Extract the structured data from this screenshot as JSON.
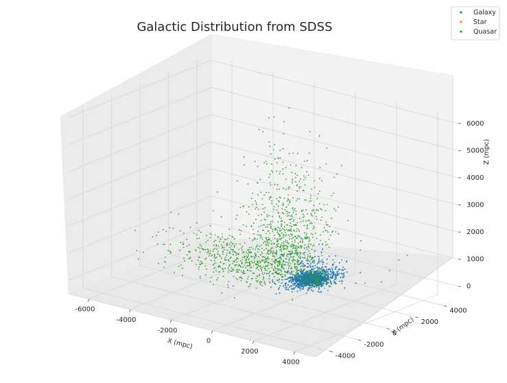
{
  "chart_data": {
    "type": "scatter",
    "projection": "3d",
    "title": "Galactic Distribution from SDSS",
    "xlabel": "X (mpc)",
    "ylabel": "Y (mpc)",
    "zlabel": "Z (mpc)",
    "xlim": [
      -7000,
      5000
    ],
    "ylim": [
      -5000,
      5000
    ],
    "zlim": [
      -500,
      6200
    ],
    "x_ticks": [
      "-6000",
      "-4000",
      "-2000",
      "0",
      "2000",
      "4000"
    ],
    "y_ticks": [
      "-4000",
      "-2000",
      "0",
      "2000",
      "4000"
    ],
    "z_ticks": [
      "0",
      "1000",
      "2000",
      "3000",
      "4000",
      "5000",
      "6000"
    ],
    "grid": true,
    "legend_position": "top-right",
    "series": [
      {
        "name": "Galaxy",
        "color": "#1f77b4",
        "count": 1400,
        "spread": "dense cluster near origin, fanning along -x / +y with z below 1000"
      },
      {
        "name": "Star",
        "color": "#ff7f0e",
        "count": 0
      },
      {
        "name": "Quasar",
        "color": "#2ca02c",
        "count": 1300,
        "spread": "broad cloud toward -x at low z plus tall column near origin up to ~6000"
      }
    ]
  }
}
